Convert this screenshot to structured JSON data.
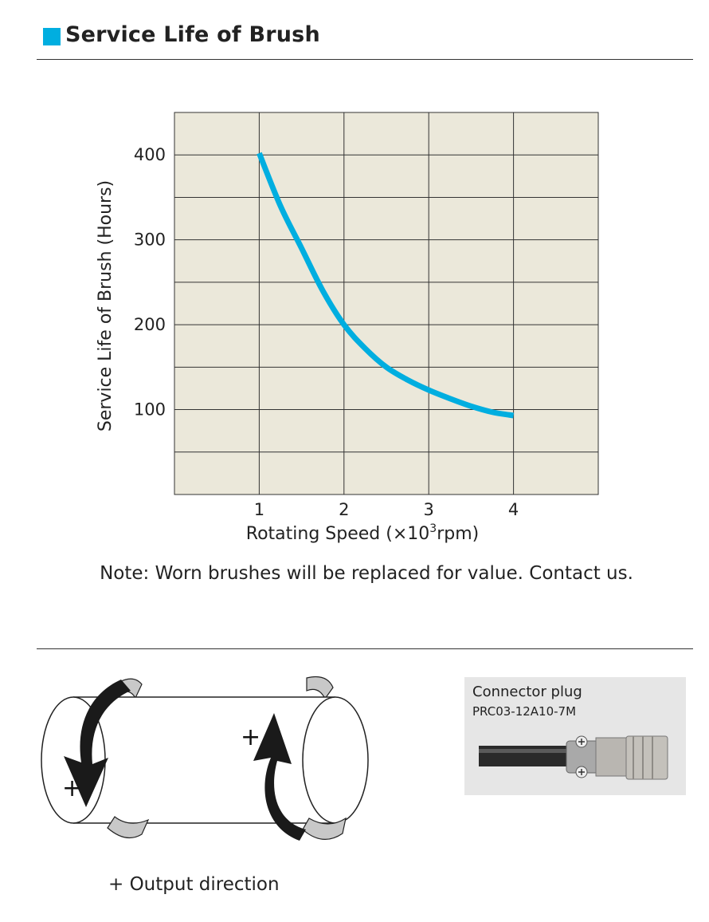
{
  "header": {
    "title": "Service Life of Brush"
  },
  "colors": {
    "accent": "#00aee0",
    "plot_bg": "#ebe8da",
    "panel_bg": "#e6e6e6",
    "grid": "#333333"
  },
  "chart_data": {
    "type": "line",
    "xlabel": "Rotating Speed (×10",
    "xlabel_sup": "3",
    "xlabel_suffix": "rpm)",
    "ylabel": "Service Life of Brush (Hours)",
    "xlim": [
      0,
      5
    ],
    "ylim": [
      0,
      450
    ],
    "x_ticks": [
      1,
      2,
      3,
      4
    ],
    "y_ticks": [
      100,
      200,
      300,
      400
    ],
    "grid": true,
    "series": [
      {
        "x": [
          1.0,
          1.25,
          1.5,
          1.75,
          2.0,
          2.25,
          2.5,
          2.75,
          3.0,
          3.25,
          3.5,
          3.75,
          4.0
        ],
        "y": [
          402,
          340,
          290,
          240,
          200,
          172,
          150,
          135,
          123,
          113,
          104,
          97,
          93
        ]
      }
    ]
  },
  "note": "Note: Worn brushes will be replaced for value. Contact us.",
  "diagram": {
    "plus_left": "+",
    "plus_right": "+",
    "output_label": "+ Output direction"
  },
  "connector": {
    "title": "Connector plug",
    "model": "PRC03-12A10-7M"
  }
}
